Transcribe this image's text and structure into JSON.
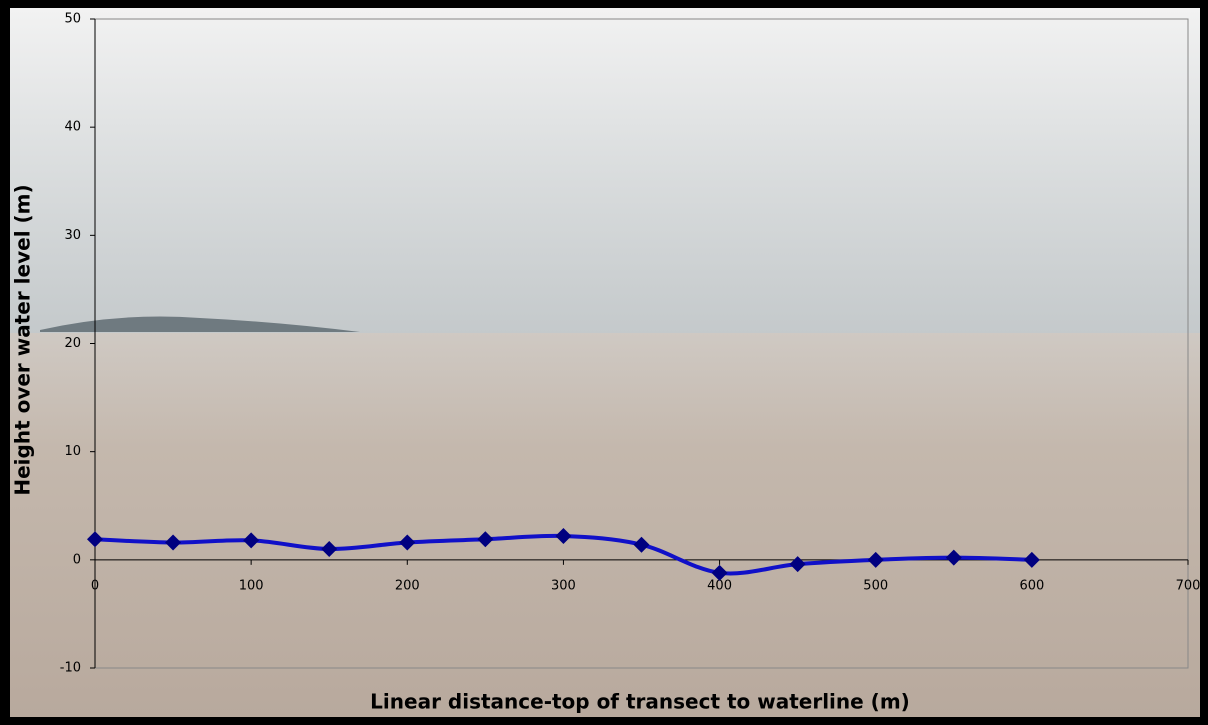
{
  "chart_data": {
    "type": "line",
    "y_label": "Height over water level (m)",
    "x_label": "Linear distance-top of transect to waterline (m)",
    "series": [
      {
        "color": "#1010c8",
        "marker_color": "#000080",
        "x": [
          0,
          50,
          100,
          150,
          200,
          250,
          300,
          350,
          400,
          450,
          500,
          550,
          600
        ],
        "values": [
          1.9,
          1.6,
          1.8,
          1.0,
          1.6,
          1.9,
          2.2,
          1.4,
          -1.2,
          -0.4,
          0,
          0.2,
          0
        ]
      }
    ],
    "xlim": [
      0,
      700
    ],
    "xticks": [
      0,
      100,
      200,
      300,
      400,
      500,
      600,
      700
    ],
    "ylim": [
      -10,
      50
    ],
    "yticks": [
      -10,
      0,
      10,
      20,
      30,
      40,
      50
    ],
    "smooth": true
  }
}
